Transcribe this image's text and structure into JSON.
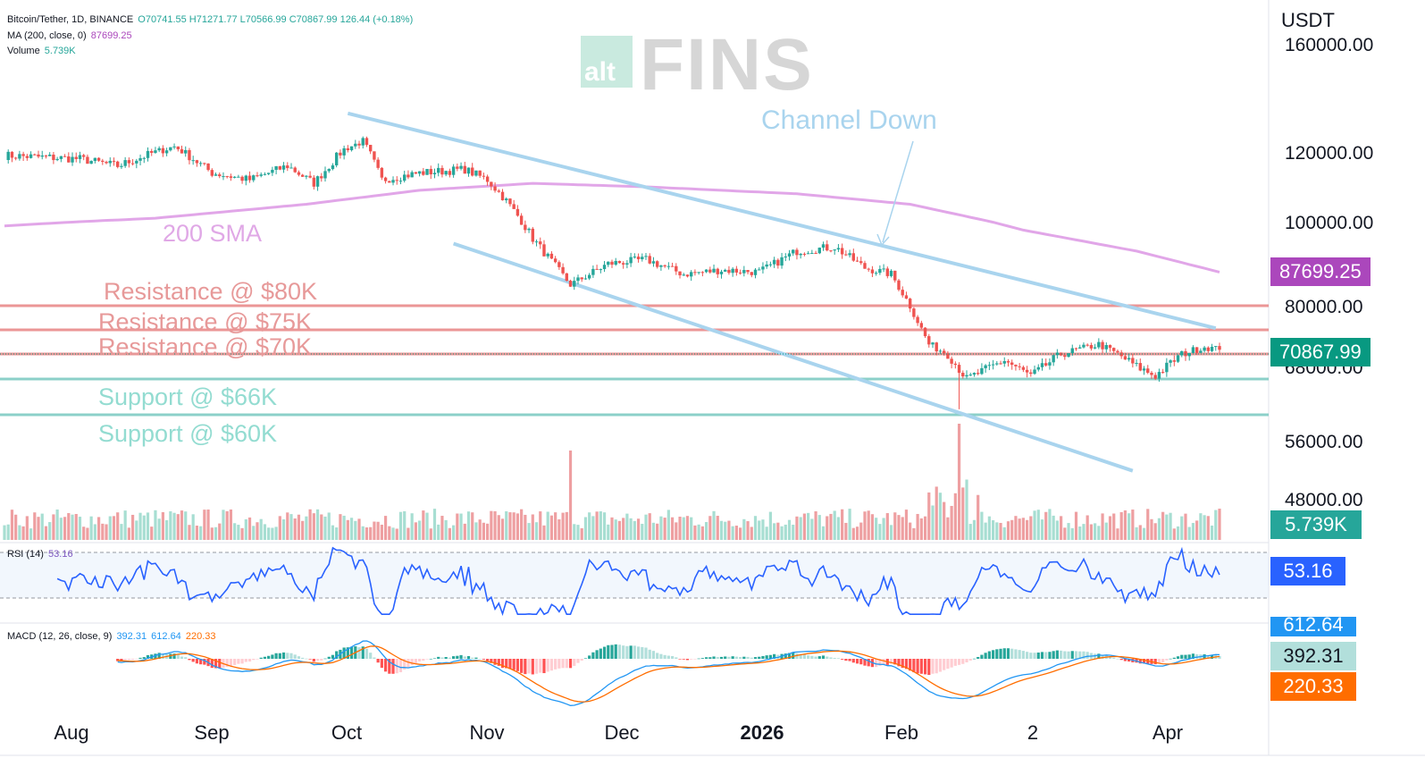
{
  "header": {
    "symbol": "Bitcoin/Tether, 1D, BINANCE",
    "ohlc": "O70741.55  H71271.77  L70566.99  C70867.99  126.44 (+0.18%)",
    "ma_label": "MA (200, close, 0)",
    "ma_value": "87699.25",
    "volume_label": "Volume",
    "volume_value": "5.739K",
    "rsi_label": "RSI (14)",
    "rsi_value": "53.16",
    "macd_label": "MACD (12, 26, close, 9)",
    "macd_values": [
      "392.31",
      "612.64",
      "220.33"
    ]
  },
  "watermark": {
    "small": "alt",
    "big": "FINS"
  },
  "currency": "USDT",
  "badges": {
    "ma": {
      "text": "87699.25",
      "color": "#ab47bc"
    },
    "price": {
      "text": "70867.99",
      "color": "#089981"
    },
    "volume": {
      "text": "5.739K",
      "color": "#26a69a"
    },
    "rsi": {
      "text": "53.16",
      "color": "#2962ff"
    },
    "macd_signal_hidden": {
      "text": "612.64",
      "color": "#2196f3"
    },
    "macd_hist": {
      "text": "392.31",
      "color": "#b2dfdb"
    },
    "macd_line": {
      "text": "220.33",
      "color": "#ff6d00"
    }
  },
  "annotations": {
    "channel": "Channel Down",
    "sma": "200 SMA",
    "res80": "Resistance @ $80K",
    "res75": "Resistance @ $75K",
    "res70": "Resistance @ $70K",
    "sup66": "Support @ $66K",
    "sup60": "Support @ $60K"
  },
  "colors": {
    "up": "#26a69a",
    "down": "#ef5350",
    "ma": "#e1a6e8",
    "resistance": "#e57373",
    "support": "#80cbc4",
    "channel": "#a9d4ee",
    "rsi_line": "#2962ff",
    "macd": "#2196f3",
    "signal": "#ff6d00"
  },
  "chart_data": {
    "type": "candlestick",
    "y_axis_ticks": [
      "160000.00",
      "120000.00",
      "100000.00",
      "80000.00",
      "68000.00",
      "56000.00",
      "48000.00"
    ],
    "x_axis_ticks": [
      "Aug",
      "Sep",
      "Oct",
      "Nov",
      "Dec",
      "2026",
      "Feb",
      "2",
      "Apr"
    ],
    "price_key_points": [
      [
        0,
        119000
      ],
      [
        20,
        118000
      ],
      [
        30,
        116000
      ],
      [
        40,
        120000
      ],
      [
        45,
        122000
      ],
      [
        55,
        114000
      ],
      [
        65,
        112000
      ],
      [
        75,
        116000
      ],
      [
        82,
        111000
      ],
      [
        90,
        121000
      ],
      [
        95,
        124000
      ],
      [
        100,
        112000
      ],
      [
        110,
        114000
      ],
      [
        122,
        115000
      ],
      [
        128,
        112000
      ],
      [
        133,
        106000
      ],
      [
        140,
        96000
      ],
      [
        150,
        85000
      ],
      [
        160,
        90000
      ],
      [
        170,
        91000
      ],
      [
        180,
        87500
      ],
      [
        190,
        88500
      ],
      [
        200,
        88000
      ],
      [
        210,
        93000
      ],
      [
        220,
        94000
      ],
      [
        228,
        89000
      ],
      [
        235,
        87500
      ],
      [
        240,
        80000
      ],
      [
        245,
        72000
      ],
      [
        250,
        70000
      ],
      [
        255,
        66000
      ],
      [
        265,
        69000
      ],
      [
        272,
        66500
      ],
      [
        280,
        70000
      ],
      [
        290,
        72000
      ],
      [
        300,
        68000
      ],
      [
        305,
        66500
      ],
      [
        312,
        70000
      ],
      [
        318,
        71500
      ],
      [
        322,
        70867.99
      ]
    ],
    "levels": {
      "resistance": [
        80000,
        75000,
        70000
      ],
      "support": [
        66000,
        60000
      ]
    },
    "channel_upper": [
      [
        91,
        126000
      ],
      [
        321,
        77000
      ]
    ],
    "channel_lower": [
      [
        119,
        85000
      ],
      [
        299,
        52000
      ]
    ],
    "sma200_points": [
      [
        0,
        99000
      ],
      [
        40,
        101000
      ],
      [
        80,
        105000
      ],
      [
        110,
        109000
      ],
      [
        140,
        111000
      ],
      [
        170,
        110000
      ],
      [
        210,
        108000
      ],
      [
        240,
        105000
      ],
      [
        270,
        98000
      ],
      [
        300,
        93000
      ],
      [
        322,
        88000
      ]
    ],
    "rsi_range": [
      0,
      100
    ],
    "rsi_levels": [
      70,
      30
    ]
  }
}
